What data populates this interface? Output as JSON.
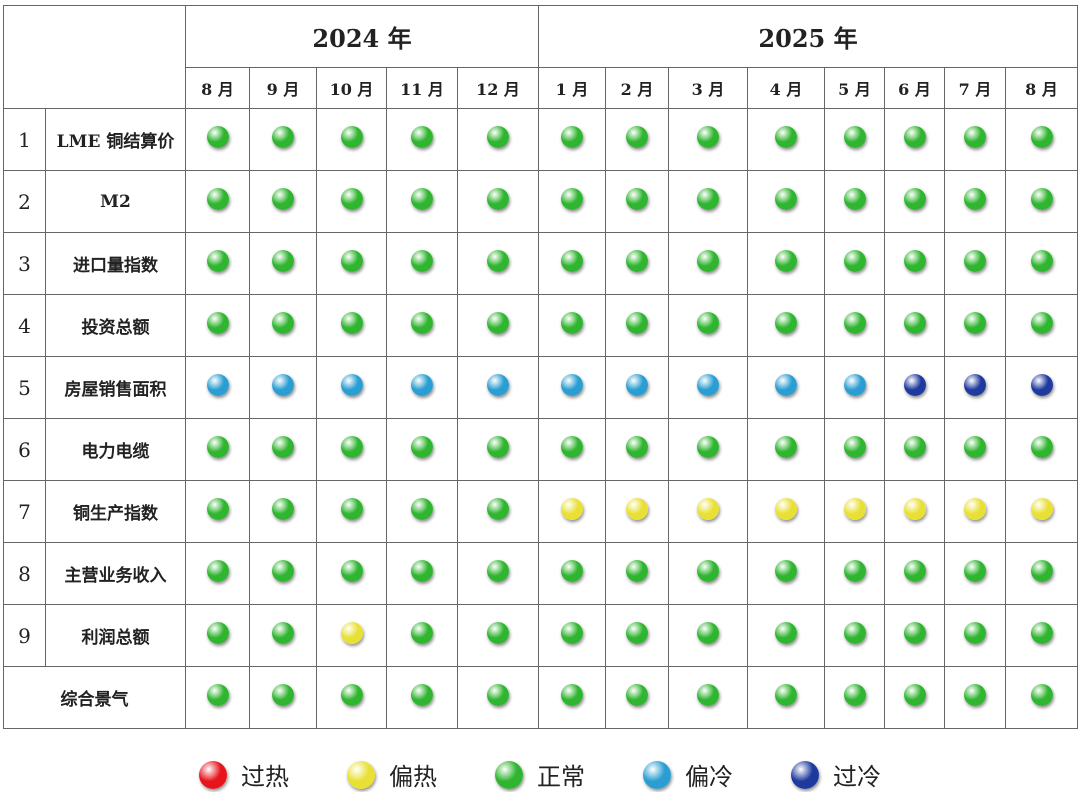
{
  "chart_data": {
    "type": "table",
    "years": [
      {
        "label": "2024 年",
        "span": 5
      },
      {
        "label": "2025 年",
        "span": 8
      }
    ],
    "months": [
      "8 月",
      "9 月",
      "10 月",
      "11 月",
      "12 月",
      "1 月",
      "2 月",
      "3 月",
      "4 月",
      "5 月",
      "6 月",
      "7 月",
      "8 月"
    ],
    "rows": [
      {
        "num": "1",
        "label": "LME 铜结算价",
        "values": [
          "正常",
          "正常",
          "正常",
          "正常",
          "正常",
          "正常",
          "正常",
          "正常",
          "正常",
          "正常",
          "正常",
          "正常",
          "正常"
        ]
      },
      {
        "num": "2",
        "label": "M2",
        "values": [
          "正常",
          "正常",
          "正常",
          "正常",
          "正常",
          "正常",
          "正常",
          "正常",
          "正常",
          "正常",
          "正常",
          "正常",
          "正常"
        ]
      },
      {
        "num": "3",
        "label": "进口量指数",
        "values": [
          "正常",
          "正常",
          "正常",
          "正常",
          "正常",
          "正常",
          "正常",
          "正常",
          "正常",
          "正常",
          "正常",
          "正常",
          "正常"
        ]
      },
      {
        "num": "4",
        "label": "投资总额",
        "values": [
          "正常",
          "正常",
          "正常",
          "正常",
          "正常",
          "正常",
          "正常",
          "正常",
          "正常",
          "正常",
          "正常",
          "正常",
          "正常"
        ]
      },
      {
        "num": "5",
        "label": "房屋销售面积",
        "values": [
          "偏冷",
          "偏冷",
          "偏冷",
          "偏冷",
          "偏冷",
          "偏冷",
          "偏冷",
          "偏冷",
          "偏冷",
          "偏冷",
          "过冷",
          "过冷",
          "过冷"
        ]
      },
      {
        "num": "6",
        "label": "电力电缆",
        "values": [
          "正常",
          "正常",
          "正常",
          "正常",
          "正常",
          "正常",
          "正常",
          "正常",
          "正常",
          "正常",
          "正常",
          "正常",
          "正常"
        ]
      },
      {
        "num": "7",
        "label": "铜生产指数",
        "values": [
          "正常",
          "正常",
          "正常",
          "正常",
          "正常",
          "偏热",
          "偏热",
          "偏热",
          "偏热",
          "偏热",
          "偏热",
          "偏热",
          "偏热"
        ]
      },
      {
        "num": "8",
        "label": "主营业务收入",
        "values": [
          "正常",
          "正常",
          "正常",
          "正常",
          "正常",
          "正常",
          "正常",
          "正常",
          "正常",
          "正常",
          "正常",
          "正常",
          "正常"
        ]
      },
      {
        "num": "9",
        "label": "利润总额",
        "values": [
          "正常",
          "正常",
          "偏热",
          "正常",
          "正常",
          "正常",
          "正常",
          "正常",
          "正常",
          "正常",
          "正常",
          "正常",
          "正常"
        ]
      },
      {
        "num": "",
        "label": "综合景气",
        "values": [
          "正常",
          "正常",
          "正常",
          "正常",
          "正常",
          "正常",
          "正常",
          "正常",
          "正常",
          "正常",
          "正常",
          "正常",
          "正常"
        ]
      }
    ],
    "legend": [
      {
        "label": "过热",
        "color": "#e8141c"
      },
      {
        "label": "偏热",
        "color": "#e8e034"
      },
      {
        "label": "正常",
        "color": "#2fb52f"
      },
      {
        "label": "偏冷",
        "color": "#2a9ed2"
      },
      {
        "label": "过冷",
        "color": "#1f3a9e"
      }
    ]
  }
}
